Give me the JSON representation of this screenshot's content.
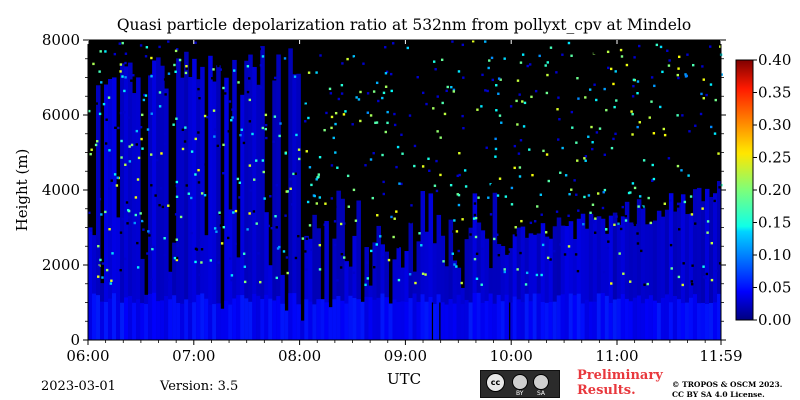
{
  "chart_data": {
    "type": "heatmap",
    "title": "Quasi particle depolarization ratio at 532nm from pollyxt_cpv at Mindelo",
    "xlabel": "UTC",
    "ylabel": "Height (m)",
    "x_ticks": [
      "06:00",
      "07:00",
      "08:00",
      "09:00",
      "10:00",
      "11:00",
      "11:59"
    ],
    "x_tick_hours": [
      6,
      7,
      8,
      9,
      10,
      11,
      11.983
    ],
    "xlim_hours": [
      6,
      11.983
    ],
    "y_ticks": [
      "0",
      "2000",
      "4000",
      "6000",
      "8000"
    ],
    "y_tick_values": [
      0,
      2000,
      4000,
      6000,
      8000
    ],
    "ylim": [
      0,
      8000
    ],
    "colorbar": {
      "ticks": [
        "0.00",
        "0.05",
        "0.10",
        "0.15",
        "0.20",
        "0.25",
        "0.30",
        "0.35",
        "0.40"
      ],
      "range": [
        0,
        0.4
      ],
      "colormap": "jet"
    },
    "field_summary": {
      "background_value": 0.03,
      "near_surface_layer_top_m": 1100,
      "near_surface_layer_value": 0.05,
      "upper_speckle_value_range": [
        0.1,
        0.25
      ],
      "no_data_color": "#000000"
    }
  },
  "footer": {
    "date": "2023-03-01",
    "version": "Version: 3.5",
    "preliminary_line1": "Preliminary",
    "preliminary_line2": "Results.",
    "copyright_line1": "© TROPOS & OSCM 2023.",
    "copyright_line2": "CC BY SA 4.0 License.",
    "cc_badge": {
      "cc": "cc",
      "by": "BY",
      "sa": "SA",
      "icons": [
        "cc-icon",
        "by-icon",
        "sa-icon"
      ]
    }
  },
  "colors": {
    "prelim_text": "#e8383d",
    "background": "#ffffff"
  }
}
